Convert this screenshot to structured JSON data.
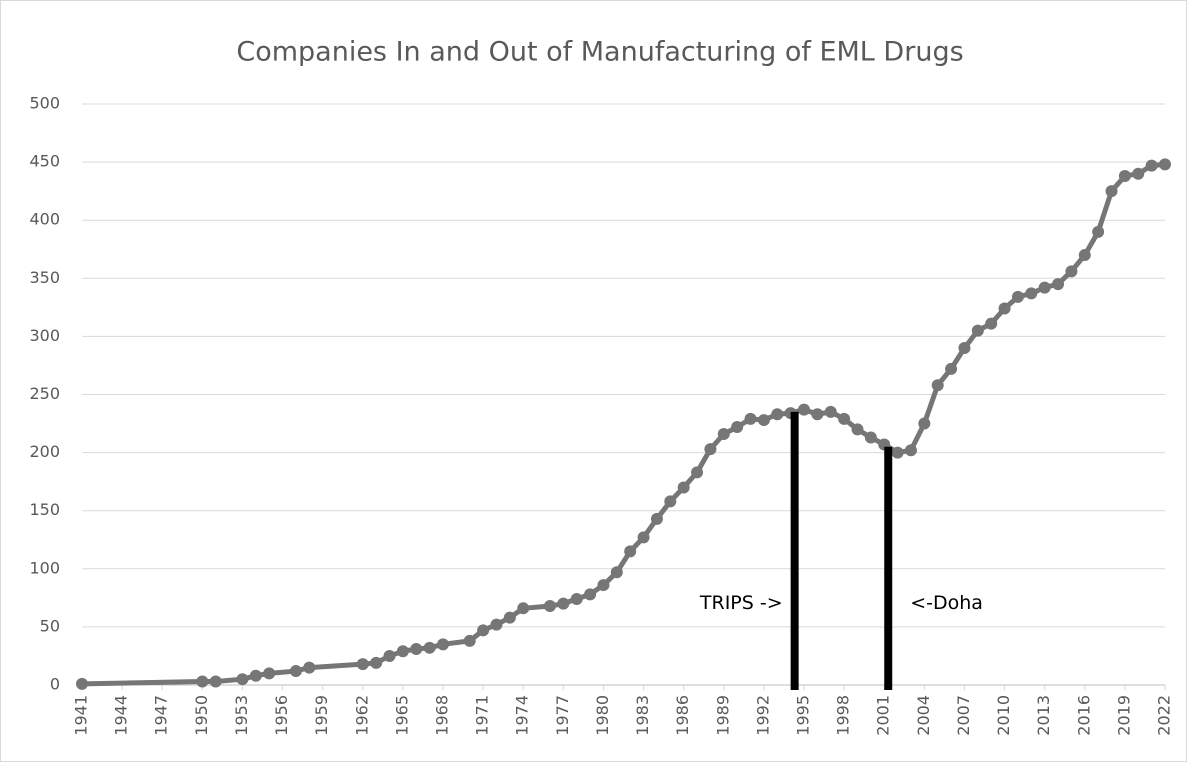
{
  "chart_data": {
    "type": "line",
    "title": "Companies In and Out of Manufacturing of EML Drugs",
    "x": [
      1941,
      1950,
      1951,
      1953,
      1954,
      1955,
      1957,
      1958,
      1962,
      1963,
      1964,
      1965,
      1966,
      1967,
      1968,
      1970,
      1971,
      1972,
      1973,
      1974,
      1976,
      1977,
      1978,
      1979,
      1980,
      1981,
      1982,
      1983,
      1984,
      1985,
      1986,
      1987,
      1988,
      1989,
      1990,
      1991,
      1992,
      1993,
      1994,
      1995,
      1996,
      1997,
      1998,
      1999,
      2000,
      2001,
      2002,
      2003,
      2004,
      2005,
      2006,
      2007,
      2008,
      2009,
      2010,
      2011,
      2012,
      2013,
      2014,
      2015,
      2016,
      2017,
      2018,
      2019,
      2020,
      2021,
      2022
    ],
    "series": [
      {
        "name": "Companies",
        "color": "#767676",
        "values": [
          1,
          3,
          3,
          5,
          8,
          10,
          12,
          15,
          18,
          19,
          25,
          29,
          31,
          32,
          35,
          38,
          47,
          52,
          58,
          66,
          68,
          70,
          74,
          78,
          86,
          97,
          115,
          127,
          143,
          158,
          170,
          183,
          203,
          216,
          222,
          229,
          228,
          233,
          234,
          237,
          233,
          235,
          229,
          220,
          213,
          207,
          200,
          202,
          225,
          258,
          272,
          290,
          305,
          311,
          324,
          334,
          337,
          342,
          345,
          356,
          370,
          390,
          425,
          438,
          440,
          447,
          448
        ]
      }
    ],
    "xlim": [
      1941,
      2022
    ],
    "xticks": [
      1941,
      1944,
      1947,
      1950,
      1953,
      1956,
      1959,
      1962,
      1965,
      1968,
      1971,
      1974,
      1977,
      1980,
      1983,
      1986,
      1989,
      1992,
      1995,
      1998,
      2001,
      2004,
      2007,
      2010,
      2013,
      2016,
      2019,
      2022
    ],
    "ylim": [
      0,
      500
    ],
    "yticks": [
      0,
      50,
      100,
      150,
      200,
      250,
      300,
      350,
      400,
      450,
      500
    ],
    "grid": true,
    "annotations": [
      {
        "text": "TRIPS ->",
        "x": 1994.3,
        "y": 235,
        "side": "left"
      },
      {
        "text": "<-Doha",
        "x": 2001.3,
        "y": 205,
        "side": "right"
      }
    ]
  }
}
